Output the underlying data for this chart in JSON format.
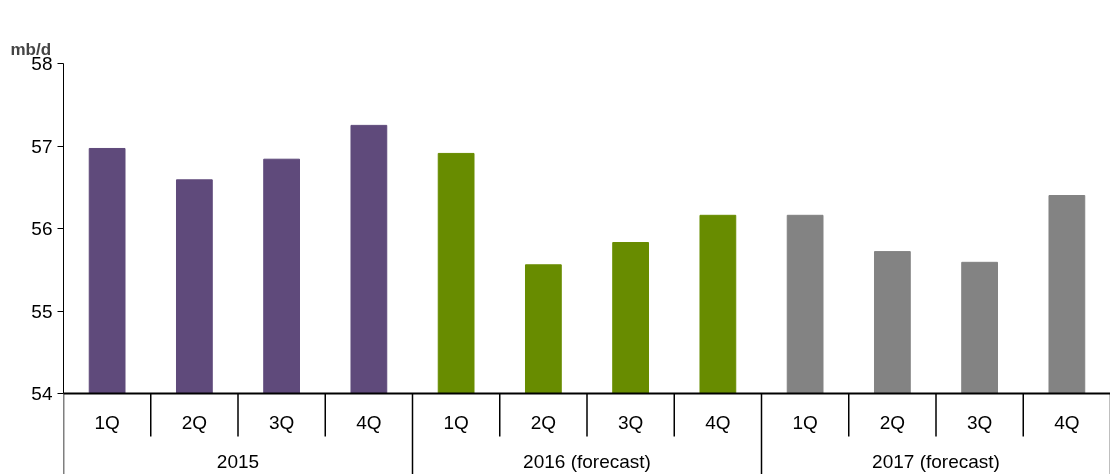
{
  "chart_data": {
    "type": "bar",
    "ylabel": "mb/d",
    "categories": [
      "1Q",
      "2Q",
      "3Q",
      "4Q",
      "1Q",
      "2Q",
      "3Q",
      "4Q",
      "1Q",
      "2Q",
      "3Q",
      "4Q"
    ],
    "values": [
      56.97,
      56.59,
      56.84,
      57.25,
      56.91,
      55.56,
      55.83,
      56.16,
      56.16,
      55.72,
      55.59,
      56.4
    ],
    "colors": [
      "#5f4a7b",
      "#5f4a7b",
      "#5f4a7b",
      "#5f4a7b",
      "#688c00",
      "#688c00",
      "#688c00",
      "#688c00",
      "#838383",
      "#838383",
      "#838383",
      "#838383"
    ],
    "annotations": [
      "2015",
      "2016 (forecast)",
      "2017 (forecast)"
    ],
    "ylim": [
      54,
      58
    ],
    "yticks": [
      54,
      55,
      56,
      57,
      58
    ],
    "grid": false
  }
}
